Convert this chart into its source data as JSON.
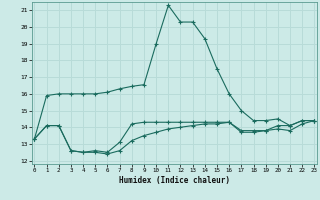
{
  "title": "",
  "xlabel": "Humidex (Indice chaleur)",
  "background_color": "#cceae7",
  "grid_color": "#b8dbd8",
  "line_color": "#1a6b5e",
  "x_ticks": [
    0,
    1,
    2,
    3,
    4,
    5,
    6,
    7,
    8,
    9,
    10,
    11,
    12,
    13,
    14,
    15,
    16,
    17,
    18,
    19,
    20,
    21,
    22,
    23
  ],
  "y_ticks": [
    12,
    13,
    14,
    15,
    16,
    17,
    18,
    19,
    20,
    21
  ],
  "xlim": [
    -0.2,
    23.2
  ],
  "ylim": [
    11.8,
    21.5
  ],
  "curves": [
    {
      "x": [
        0,
        1,
        2,
        3,
        4,
        5,
        6,
        7,
        8,
        9,
        10,
        11,
        12,
        13,
        14,
        15,
        16,
        17,
        18,
        19,
        20,
        21,
        22,
        23
      ],
      "y": [
        13.3,
        15.9,
        16.0,
        16.0,
        16.0,
        16.0,
        16.1,
        16.3,
        16.45,
        16.55,
        19.0,
        21.3,
        20.3,
        20.3,
        19.3,
        17.5,
        16.0,
        15.0,
        14.4,
        14.4,
        14.5,
        14.1,
        14.4,
        14.4
      ]
    },
    {
      "x": [
        0,
        1,
        2,
        3,
        4,
        5,
        6,
        7,
        8,
        9,
        10,
        11,
        12,
        13,
        14,
        15,
        16,
        17,
        18,
        19,
        20,
        21,
        22,
        23
      ],
      "y": [
        13.3,
        14.1,
        14.1,
        12.6,
        12.5,
        12.6,
        12.5,
        13.1,
        14.2,
        14.3,
        14.3,
        14.3,
        14.3,
        14.3,
        14.3,
        14.3,
        14.3,
        13.8,
        13.8,
        13.8,
        14.1,
        14.1,
        14.4,
        14.4
      ]
    },
    {
      "x": [
        0,
        1,
        2,
        3,
        4,
        5,
        6,
        7,
        8,
        9,
        10,
        11,
        12,
        13,
        14,
        15,
        16,
        17,
        18,
        19,
        20,
        21,
        22,
        23
      ],
      "y": [
        13.3,
        14.1,
        14.1,
        12.6,
        12.5,
        12.5,
        12.4,
        12.6,
        13.2,
        13.5,
        13.7,
        13.9,
        14.0,
        14.1,
        14.2,
        14.2,
        14.3,
        13.7,
        13.7,
        13.8,
        13.9,
        13.8,
        14.2,
        14.4
      ]
    }
  ]
}
